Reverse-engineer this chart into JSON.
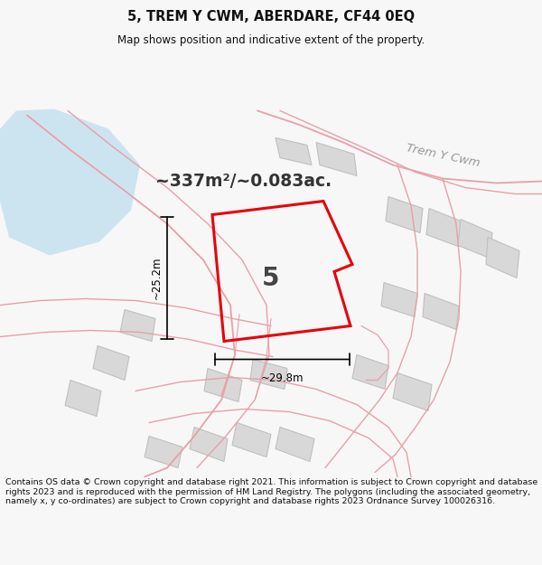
{
  "title": "5, TREM Y CWM, ABERDARE, CF44 0EQ",
  "subtitle": "Map shows position and indicative extent of the property.",
  "area_text": "~337m²/~0.083ac.",
  "dim_width": "~29.8m",
  "dim_height": "~25.2m",
  "road_label": "Trem Y Cwm",
  "property_number": "5",
  "copyright_text": "Contains OS data © Crown copyright and database right 2021. This information is subject to Crown copyright and database rights 2023 and is reproduced with the permission of HM Land Registry. The polygons (including the associated geometry, namely x, y co-ordinates) are subject to Crown copyright and database rights 2023 Ordnance Survey 100026316.",
  "bg_color": "#f7f7f7",
  "map_bg": "#ffffff",
  "title_color": "#111111",
  "red_outline": "#e8000a",
  "pink_line": "#e8a0a8",
  "grey_fill": "#d8d8d8",
  "grey_edge": "#c0c0c0",
  "blue_area": "#cce4f0",
  "road_label_color": "#999999"
}
